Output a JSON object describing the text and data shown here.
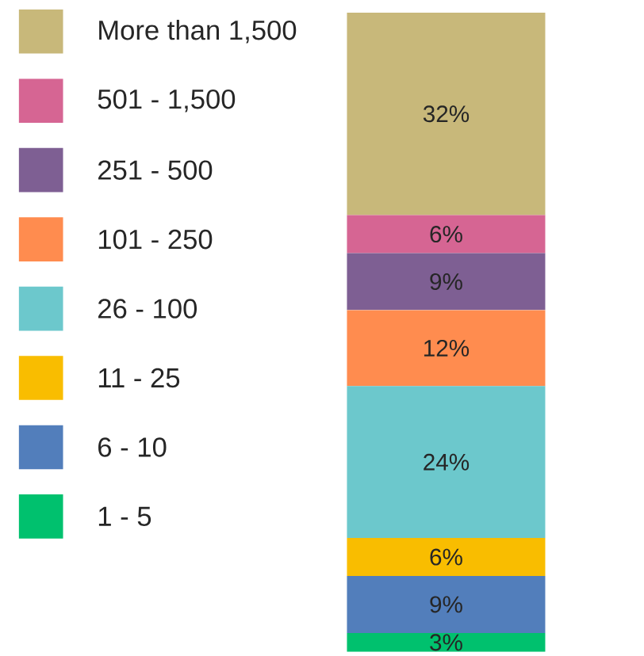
{
  "chart_data": {
    "type": "bar",
    "stacked": true,
    "tick_labels": false,
    "categories": [
      null
    ],
    "legend": "left",
    "series": [
      {
        "name": "1 - 5",
        "color": "#00c16e",
        "values": [
          3
        ],
        "value_labels": [
          "3%"
        ]
      },
      {
        "name": "6 - 10",
        "color": "#527ebb",
        "values": [
          9
        ],
        "value_labels": [
          "9%"
        ]
      },
      {
        "name": "11 - 25",
        "color": "#f9bd00",
        "values": [
          6
        ],
        "value_labels": [
          "6%"
        ]
      },
      {
        "name": "26 - 100",
        "color": "#6cc8cc",
        "values": [
          24
        ],
        "value_labels": [
          "24%"
        ]
      },
      {
        "name": "101 - 250",
        "color": "#ff8c4f",
        "values": [
          12
        ],
        "value_labels": [
          "12%"
        ]
      },
      {
        "name": "251 - 500",
        "color": "#7e5f93",
        "values": [
          9
        ],
        "value_labels": [
          "9%"
        ]
      },
      {
        "name": "501 - 1,500",
        "color": "#d66593",
        "values": [
          6
        ],
        "value_labels": [
          "6%"
        ]
      },
      {
        "name": "More than 1,500",
        "color": "#c8b87a",
        "values": [
          32
        ],
        "value_labels": [
          "32%"
        ]
      }
    ]
  }
}
